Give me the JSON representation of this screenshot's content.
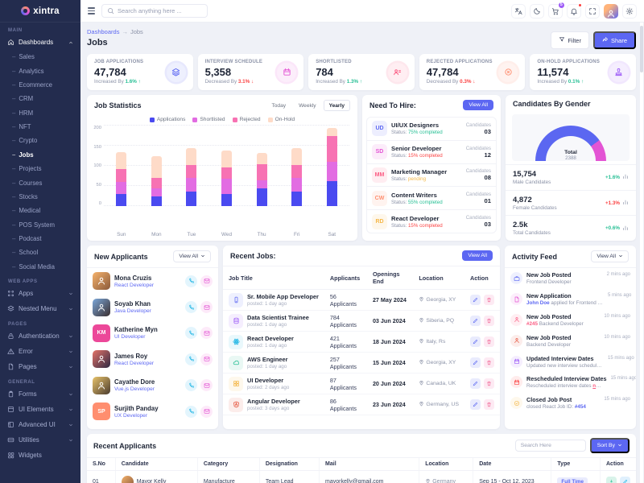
{
  "brand": "xintra",
  "topnav": {
    "search_placeholder": "Search anything here ...",
    "icons": [
      {
        "name": "translate"
      },
      {
        "name": "moon"
      },
      {
        "name": "cart",
        "badge": "5"
      },
      {
        "name": "bell",
        "dot": true
      },
      {
        "name": "expand"
      },
      {
        "name": "avatar"
      },
      {
        "name": "gear"
      }
    ]
  },
  "sidebar": {
    "sections": [
      {
        "label": "Main",
        "items": [
          {
            "label": "Dashboards",
            "icon": "home",
            "chev": "up",
            "active": true,
            "children": [
              "Sales",
              "Analytics",
              "Ecommerce",
              "CRM",
              "HRM",
              "NFT",
              "Crypto",
              "Jobs",
              "Projects",
              "Courses",
              "Stocks",
              "Medical",
              "POS System",
              "Podcast",
              "School",
              "Social Media"
            ],
            "active_child": "Jobs"
          }
        ]
      },
      {
        "label": "Web Apps",
        "items": [
          {
            "label": "Apps",
            "icon": "grid",
            "chev": "down"
          },
          {
            "label": "Nested Menu",
            "icon": "nested",
            "chev": "down"
          }
        ]
      },
      {
        "label": "Pages",
        "items": [
          {
            "label": "Authentication",
            "icon": "lock",
            "chev": "down"
          },
          {
            "label": "Error",
            "icon": "warn",
            "chev": "down"
          },
          {
            "label": "Pages",
            "icon": "filedoc",
            "chev": "down"
          }
        ]
      },
      {
        "label": "General",
        "items": [
          {
            "label": "Forms",
            "icon": "clipboard",
            "chev": "down"
          },
          {
            "label": "UI Elements",
            "icon": "box",
            "chev": "down"
          },
          {
            "label": "Advanced UI",
            "icon": "adv",
            "chev": "down"
          },
          {
            "label": "Utilities",
            "icon": "util",
            "chev": "down"
          },
          {
            "label": "Widgets",
            "icon": "widget",
            "chev": null
          }
        ]
      }
    ]
  },
  "header": {
    "breadcrumb": [
      "Dashboards",
      "Jobs"
    ],
    "title": "Jobs",
    "filter_label": "Filter",
    "share_label": "Share"
  },
  "stats": [
    {
      "label": "JOB APPLICATIONS",
      "value": "47,784",
      "trend_prefix": "Increased By",
      "pct": "1.6%",
      "dir": "up",
      "icon": "layers",
      "color": "#5c67f2"
    },
    {
      "label": "INTERVIEW SCHEDULE",
      "value": "5,358",
      "trend_prefix": "Decreased By",
      "pct": "3.1%",
      "dir": "down",
      "icon": "calendar",
      "color": "#e354d4"
    },
    {
      "label": "SHORTLISTED",
      "value": "784",
      "trend_prefix": "Increased By",
      "pct": "1.3%",
      "dir": "up",
      "icon": "userlist",
      "color": "#fb5c83"
    },
    {
      "label": "REJECTED APPLICATIONS",
      "value": "47,784",
      "trend_prefix": "Decreased By",
      "pct": "0.3%",
      "dir": "down",
      "icon": "xcircle",
      "color": "#ff8e6f"
    },
    {
      "label": "ON-HOLD APPLICATIONS",
      "value": "11,574",
      "trend_prefix": "Increased By",
      "pct": "0.1%",
      "dir": "up",
      "icon": "stamp",
      "color": "#9e5cf7"
    }
  ],
  "chart_data": {
    "type": "bar",
    "stacked": true,
    "title": "Job Statistics",
    "tabs": [
      "Today",
      "Weekly",
      "Yearly"
    ],
    "active_tab": "Yearly",
    "categories": [
      "Sun",
      "Mon",
      "Tue",
      "Wed",
      "Thu",
      "Fri",
      "Sat"
    ],
    "series": [
      {
        "name": "Applications",
        "color": "#4a4af0",
        "values": [
          30,
          25,
          37,
          30,
          45,
          36,
          63
        ]
      },
      {
        "name": "Shortlisted",
        "color": "#e26ce2",
        "values": [
          30,
          20,
          33,
          38,
          20,
          34,
          47
        ]
      },
      {
        "name": "Rejected",
        "color": "#f772b3",
        "values": [
          33,
          25,
          33,
          29,
          40,
          32,
          65
        ]
      },
      {
        "name": "On-Hold",
        "color": "#fedbc8",
        "values": [
          42,
          55,
          42,
          41,
          28,
          43,
          20
        ]
      }
    ],
    "ylim": [
      0,
      200
    ],
    "yticks": [
      0,
      50,
      100,
      150,
      200
    ],
    "grid": "dotted horizontal",
    "legend_position": "top"
  },
  "need_to_hire": {
    "title": "Need To Hire:",
    "view_all": "View All",
    "status_label": "Status:",
    "candidates_label": "Candidates",
    "items": [
      {
        "initials": "UD",
        "color": "#5c67f2",
        "role": "UI/UX Designers",
        "status": "75% completed",
        "status_color": "#26bf94",
        "candidates": "03"
      },
      {
        "initials": "SD",
        "color": "#e354d4",
        "role": "Senior Developer",
        "status": "15% completed",
        "status_color": "#fb4242",
        "candidates": "12"
      },
      {
        "initials": "MM",
        "color": "#fb5c83",
        "role": "Marketing Manager",
        "status": "pending",
        "status_color": "#f5b849",
        "candidates": "08"
      },
      {
        "initials": "CW",
        "color": "#ff8e6f",
        "role": "Content Writers",
        "status": "55% completed",
        "status_color": "#26bf94",
        "candidates": "01"
      },
      {
        "initials": "RD",
        "color": "#f5b849",
        "role": "React Developer",
        "status": "15% completed",
        "status_color": "#fb4242",
        "candidates": "03"
      }
    ]
  },
  "gender": {
    "title": "Candidates By Gender",
    "gauge": {
      "total_label": "Total",
      "total_value": "2388",
      "male_deg": 144,
      "male_color": "#5b67f1",
      "female_color": "#e354d4"
    },
    "rows": [
      {
        "value": "15,754",
        "label": "Male Candidates",
        "pct": "+1.6%",
        "color": "#26bf94"
      },
      {
        "value": "4,872",
        "label": "Female Candidates",
        "pct": "+1.3%",
        "color": "#fb4242"
      },
      {
        "value": "2.5k",
        "label": "Total Candidates",
        "pct": "+0.6%",
        "color": "#26bf94"
      }
    ]
  },
  "new_applicants": {
    "title": "New Applicants",
    "view_all": "View All",
    "items": [
      {
        "name": "Mona Cruzis",
        "role": "React Developer",
        "avatar": "photo",
        "bg": "linear-gradient(135deg,#f6b26b,#8a5a3b)",
        "initials": "MC"
      },
      {
        "name": "Soyab Khan",
        "role": "Java Developer",
        "avatar": "photo",
        "bg": "linear-gradient(135deg,#7ba7d9,#3b2f2f)",
        "initials": "SK"
      },
      {
        "name": "Katherine Myn",
        "role": "UI Developer",
        "avatar": "initials",
        "bg": "#ec4899",
        "initials": "KM"
      },
      {
        "name": "James Roy",
        "role": "React Developer",
        "avatar": "photo",
        "bg": "linear-gradient(135deg,#e57368,#2f2a44)",
        "initials": "JR"
      },
      {
        "name": "Cayathe Dore",
        "role": "Vue.js Developer",
        "avatar": "photo",
        "bg": "linear-gradient(135deg,#e8c36a,#4a3b2f)",
        "initials": "CD"
      },
      {
        "name": "Surjith Panday",
        "role": "UX Developer",
        "avatar": "initials",
        "bg": "#ff8e6f",
        "initials": "SP"
      }
    ]
  },
  "recent_jobs": {
    "title": "Recent Jobs:",
    "view_all": "View All",
    "columns": [
      "Job Title",
      "Applicants",
      "Openings End",
      "Location",
      "Action"
    ],
    "rows": [
      {
        "title": "Sr. Mobile App Developer",
        "posted": "posted: 1 day ago",
        "applicants": "56 Applicants",
        "end": "27 May 2024",
        "location": "Georgia, XY",
        "icon": "mobile",
        "color": "#5c67f2"
      },
      {
        "title": "Data Scientist Trainee",
        "posted": "posted: 1 day ago",
        "applicants": "784 Applicants",
        "end": "03 Jun 2024",
        "location": "Siberia, PQ",
        "icon": "database",
        "color": "#9e5cf7"
      },
      {
        "title": "React Developer",
        "posted": "posted: 1 day ago",
        "applicants": "421 Applicants",
        "end": "18 Jun 2024",
        "location": "Italy, Rs",
        "icon": "react",
        "color": "#23b7e5"
      },
      {
        "title": "AWS Engineer",
        "posted": "posted: 1 day ago",
        "applicants": "257 Applicants",
        "end": "15 Jun 2024",
        "location": "Georgia, XY",
        "icon": "cloud",
        "color": "#26bf94"
      },
      {
        "title": "UI Developer",
        "posted": "posted: 2 days ago",
        "applicants": "87 Applicants",
        "end": "20 Jun 2024",
        "location": "Canada, UK",
        "icon": "grid4",
        "color": "#f5b849"
      },
      {
        "title": "Angular Developer",
        "posted": "posted: 3 days ago",
        "applicants": "86 Applicants",
        "end": "23 Jun 2024",
        "location": "Germany, US",
        "icon": "angular",
        "color": "#e6533c"
      }
    ]
  },
  "activity": {
    "title": "Activity Feed",
    "view_all": "View All",
    "items": [
      {
        "title": "New Job Posted",
        "d1": "Frontend Developer",
        "a": "",
        "d2": "",
        "time": "2 mins ago",
        "icon": "briefcase",
        "color": "#5c67f2",
        "acc_color": ""
      },
      {
        "title": "New Application",
        "d1": "",
        "a": "John Doe",
        "d2": " applied for Frontend Develop...",
        "time": "5 mins ago",
        "icon": "filedoc",
        "color": "#e354d4",
        "acc_color": "#5c67f2"
      },
      {
        "title": "New Job Posted",
        "d1": "",
        "a": "#245",
        "d2": " Backend Developer",
        "time": "10 mins ago",
        "icon": "user",
        "color": "#fb5c83",
        "acc_color": "#fb5c83"
      },
      {
        "title": "New Job Posted",
        "d1": "Backend Developer",
        "a": "",
        "d2": "",
        "time": "10 mins ago",
        "icon": "user",
        "color": "#e6533c",
        "acc_color": ""
      },
      {
        "title": "Updated Interview Dates",
        "d1": "Updated new interview scheduled and ...",
        "a": "",
        "d2": "",
        "time": "15 mins ago",
        "icon": "calendar",
        "color": "#9e5cf7",
        "acc_color": ""
      },
      {
        "title": "Rescheduled Interview Dates",
        "d1": "Rescheduled interview dates ",
        "a": "notificati...",
        "d2": "",
        "time": "15 mins ago",
        "icon": "calendar",
        "color": "#fb4242",
        "acc_color": "#fb5c83",
        "underline": true
      },
      {
        "title": "Closed Job Post",
        "d1": "closed React Job ID: ",
        "a": "#454",
        "d2": "",
        "time": "15 mins ago",
        "icon": "check",
        "color": "#f5b849",
        "acc_color": "#5c67f2"
      }
    ]
  },
  "recent_applicants": {
    "title": "Recent Applicants",
    "search_placeholder": "Search Here",
    "sort_label": "Sort By",
    "columns": [
      "S.No",
      "Candidate",
      "Category",
      "Designation",
      "Mail",
      "Location",
      "Date",
      "Type",
      "Action"
    ],
    "rows": [
      {
        "sno": "01",
        "name": "Mayor Kelly",
        "category": "Manufacture",
        "designation": "Team Lead",
        "mail": "mayorkelly@gmail.com",
        "location": "Germany",
        "date": "Sep 15 - Oct 12, 2023",
        "type": "Full Time"
      }
    ]
  }
}
